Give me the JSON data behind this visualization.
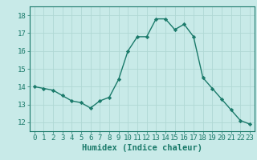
{
  "x": [
    0,
    1,
    2,
    3,
    4,
    5,
    6,
    7,
    8,
    9,
    10,
    11,
    12,
    13,
    14,
    15,
    16,
    17,
    18,
    19,
    20,
    21,
    22,
    23
  ],
  "y": [
    14.0,
    13.9,
    13.8,
    13.5,
    13.2,
    13.1,
    12.8,
    13.2,
    13.4,
    14.4,
    16.0,
    16.8,
    16.8,
    17.8,
    17.8,
    17.2,
    17.5,
    16.8,
    14.5,
    13.9,
    13.3,
    12.7,
    12.1,
    11.9
  ],
  "line_color": "#1a7a6a",
  "marker": "D",
  "marker_size": 2.2,
  "bg_color": "#c8eae8",
  "grid_color": "#b0d8d4",
  "xlabel": "Humidex (Indice chaleur)",
  "ylabel": "",
  "ylim": [
    11.5,
    18.5
  ],
  "xlim": [
    -0.5,
    23.5
  ],
  "yticks": [
    12,
    13,
    14,
    15,
    16,
    17,
    18
  ],
  "xticks": [
    0,
    1,
    2,
    3,
    4,
    5,
    6,
    7,
    8,
    9,
    10,
    11,
    12,
    13,
    14,
    15,
    16,
    17,
    18,
    19,
    20,
    21,
    22,
    23
  ],
  "tick_fontsize": 6.5,
  "xlabel_fontsize": 7.5,
  "line_width": 1.0
}
